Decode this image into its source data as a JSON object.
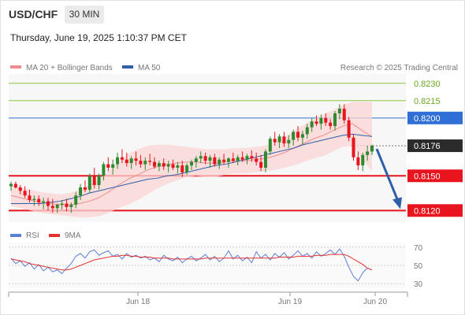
{
  "header": {
    "symbol": "USD/CHF",
    "timeframe": "30 MIN",
    "timestamp": "Thursday, June 19, 2025 1:10:37 PM CET"
  },
  "chart_data": [
    {
      "type": "candlestick",
      "legend": [
        {
          "name": "MA 20 + Bollinger Bands",
          "color": "#f08c8c"
        },
        {
          "name": "MA 50",
          "color": "#2f5fa8"
        }
      ],
      "credit": "Research © 2025 Trading Central",
      "ylim": [
        0.811,
        0.8238
      ],
      "levels": [
        {
          "label": "0.8230",
          "value": 0.823,
          "kind": "target"
        },
        {
          "label": "0.8215",
          "value": 0.8215,
          "kind": "target"
        },
        {
          "label": "0.8200",
          "value": 0.82,
          "kind": "pivot"
        },
        {
          "label": "0.8176",
          "value": 0.8176,
          "kind": "last"
        },
        {
          "label": "0.8150",
          "value": 0.815,
          "kind": "support"
        },
        {
          "label": "0.8120",
          "value": 0.812,
          "kind": "support"
        }
      ],
      "x_ticks": [
        "Jun 18",
        "Jun 19",
        "Jun 20"
      ],
      "candles": [
        [
          0.8141,
          0.8145,
          0.8137,
          0.8143
        ],
        [
          0.8143,
          0.8145,
          0.8139,
          0.814
        ],
        [
          0.814,
          0.8142,
          0.8134,
          0.8137
        ],
        [
          0.8137,
          0.8141,
          0.8131,
          0.8133
        ],
        [
          0.8133,
          0.8138,
          0.8127,
          0.8129
        ],
        [
          0.8129,
          0.8133,
          0.8124,
          0.813
        ],
        [
          0.813,
          0.8133,
          0.8124,
          0.8127
        ],
        [
          0.8127,
          0.8131,
          0.8121,
          0.8128
        ],
        [
          0.8128,
          0.8131,
          0.812,
          0.8124
        ],
        [
          0.8124,
          0.813,
          0.8118,
          0.8122
        ],
        [
          0.8122,
          0.8126,
          0.8118,
          0.8125
        ],
        [
          0.8125,
          0.8129,
          0.8121,
          0.8126
        ],
        [
          0.8126,
          0.813,
          0.8119,
          0.8123
        ],
        [
          0.8123,
          0.8127,
          0.8118,
          0.8125
        ],
        [
          0.8125,
          0.8136,
          0.8122,
          0.8133
        ],
        [
          0.8133,
          0.8143,
          0.8129,
          0.814
        ],
        [
          0.814,
          0.8146,
          0.8136,
          0.8138
        ],
        [
          0.8138,
          0.8152,
          0.8135,
          0.815
        ],
        [
          0.815,
          0.8157,
          0.8139,
          0.8142
        ],
        [
          0.8142,
          0.8152,
          0.8138,
          0.815
        ],
        [
          0.815,
          0.8162,
          0.8146,
          0.816
        ],
        [
          0.816,
          0.8166,
          0.8154,
          0.8157
        ],
        [
          0.8157,
          0.8164,
          0.8151,
          0.816
        ],
        [
          0.816,
          0.817,
          0.8156,
          0.8166
        ],
        [
          0.8166,
          0.8173,
          0.8161,
          0.8164
        ],
        [
          0.8164,
          0.817,
          0.8158,
          0.8161
        ],
        [
          0.8161,
          0.8167,
          0.8156,
          0.8165
        ],
        [
          0.8165,
          0.8171,
          0.8159,
          0.8163
        ],
        [
          0.8163,
          0.8168,
          0.8157,
          0.816
        ],
        [
          0.816,
          0.8166,
          0.8155,
          0.8163
        ],
        [
          0.8163,
          0.8169,
          0.8159,
          0.8162
        ],
        [
          0.8162,
          0.8166,
          0.8156,
          0.8158
        ],
        [
          0.8158,
          0.8163,
          0.8154,
          0.8161
        ],
        [
          0.8161,
          0.8165,
          0.8155,
          0.8158
        ],
        [
          0.8158,
          0.8163,
          0.8153,
          0.816
        ],
        [
          0.816,
          0.8164,
          0.8155,
          0.8157
        ],
        [
          0.8157,
          0.8162,
          0.8152,
          0.8159
        ],
        [
          0.8159,
          0.8163,
          0.8149,
          0.8153
        ],
        [
          0.8153,
          0.8161,
          0.8151,
          0.8159
        ],
        [
          0.8159,
          0.8164,
          0.8155,
          0.8162
        ],
        [
          0.8162,
          0.8167,
          0.8157,
          0.8165
        ],
        [
          0.8165,
          0.8171,
          0.8161,
          0.8167
        ],
        [
          0.8167,
          0.817,
          0.816,
          0.8163
        ],
        [
          0.8163,
          0.8168,
          0.8157,
          0.8166
        ],
        [
          0.8166,
          0.8169,
          0.8158,
          0.816
        ],
        [
          0.816,
          0.8166,
          0.8156,
          0.8164
        ],
        [
          0.8164,
          0.8169,
          0.816,
          0.8162
        ],
        [
          0.8162,
          0.8166,
          0.8157,
          0.8165
        ],
        [
          0.8165,
          0.817,
          0.8161,
          0.8163
        ],
        [
          0.8163,
          0.8168,
          0.8159,
          0.8166
        ],
        [
          0.8166,
          0.8171,
          0.8162,
          0.8164
        ],
        [
          0.8164,
          0.8169,
          0.816,
          0.8167
        ],
        [
          0.8167,
          0.8172,
          0.8162,
          0.8165
        ],
        [
          0.8165,
          0.817,
          0.8159,
          0.8162
        ],
        [
          0.8162,
          0.8168,
          0.8154,
          0.8157
        ],
        [
          0.8157,
          0.8173,
          0.8153,
          0.8171
        ],
        [
          0.8171,
          0.8184,
          0.8168,
          0.8182
        ],
        [
          0.8182,
          0.8188,
          0.8176,
          0.8179
        ],
        [
          0.8179,
          0.8186,
          0.8174,
          0.8184
        ],
        [
          0.8184,
          0.8188,
          0.8175,
          0.8178
        ],
        [
          0.8178,
          0.8185,
          0.8174,
          0.8181
        ],
        [
          0.8181,
          0.819,
          0.8176,
          0.8188
        ],
        [
          0.8188,
          0.8193,
          0.818,
          0.8183
        ],
        [
          0.8183,
          0.8189,
          0.8177,
          0.8186
        ],
        [
          0.8186,
          0.8195,
          0.8182,
          0.8192
        ],
        [
          0.8192,
          0.82,
          0.8188,
          0.8197
        ],
        [
          0.8197,
          0.8202,
          0.8193,
          0.8195
        ],
        [
          0.8195,
          0.8203,
          0.819,
          0.82
        ],
        [
          0.82,
          0.8204,
          0.8193,
          0.8196
        ],
        [
          0.8196,
          0.8199,
          0.819,
          0.8193
        ],
        [
          0.8193,
          0.8206,
          0.8189,
          0.8204
        ],
        [
          0.8204,
          0.8212,
          0.8199,
          0.8208
        ],
        [
          0.8208,
          0.8212,
          0.8195,
          0.8198
        ],
        [
          0.8198,
          0.8201,
          0.818,
          0.8183
        ],
        [
          0.8183,
          0.8186,
          0.8163,
          0.8166
        ],
        [
          0.8166,
          0.8171,
          0.8155,
          0.8159
        ],
        [
          0.8159,
          0.817,
          0.8154,
          0.8168
        ],
        [
          0.8168,
          0.8176,
          0.8163,
          0.8171
        ],
        [
          0.8171,
          0.8177,
          0.8168,
          0.8176
        ]
      ],
      "ma20": [
        0.8133,
        0.8131,
        0.8129,
        0.8127,
        0.8126,
        0.8125,
        0.8125,
        0.8126,
        0.8128,
        0.8131,
        0.8136,
        0.8142,
        0.8147,
        0.8151,
        0.8155,
        0.8158,
        0.816,
        0.8161,
        0.8162,
        0.8162,
        0.8161,
        0.8161,
        0.8162,
        0.8163,
        0.8163,
        0.8164,
        0.8165,
        0.8167,
        0.817,
        0.8174,
        0.8178,
        0.8182,
        0.8185,
        0.8189,
        0.8193,
        0.8195,
        0.8189,
        0.8184
      ],
      "bb_upper": [
        0.8142,
        0.814,
        0.8138,
        0.8136,
        0.8135,
        0.8134,
        0.8135,
        0.8138,
        0.8142,
        0.8147,
        0.8154,
        0.8162,
        0.8169,
        0.8173,
        0.8176,
        0.8177,
        0.8177,
        0.8176,
        0.8175,
        0.8174,
        0.8173,
        0.8173,
        0.8173,
        0.8174,
        0.8174,
        0.8175,
        0.8176,
        0.8179,
        0.8183,
        0.8189,
        0.8194,
        0.8199,
        0.8203,
        0.8207,
        0.8211,
        0.8214,
        0.8214,
        0.8214
      ],
      "bb_lower": [
        0.8124,
        0.8122,
        0.812,
        0.8118,
        0.8117,
        0.8116,
        0.8115,
        0.8114,
        0.8114,
        0.8115,
        0.8118,
        0.8122,
        0.8125,
        0.8129,
        0.8134,
        0.8139,
        0.8143,
        0.8146,
        0.8149,
        0.815,
        0.8149,
        0.8149,
        0.8151,
        0.8152,
        0.8152,
        0.8153,
        0.8154,
        0.8155,
        0.8157,
        0.8159,
        0.8162,
        0.8165,
        0.8167,
        0.8171,
        0.8175,
        0.8176,
        0.8164,
        0.8154
      ],
      "ma50": [
        0.8126,
        0.8126,
        0.8126,
        0.8126,
        0.8127,
        0.8128,
        0.813,
        0.8132,
        0.8135,
        0.8137,
        0.8139,
        0.8141,
        0.8143,
        0.8145,
        0.8147,
        0.8148,
        0.815,
        0.8151,
        0.8153,
        0.8155,
        0.8157,
        0.8159,
        0.816,
        0.8162,
        0.8164,
        0.8166,
        0.8168,
        0.817,
        0.8172,
        0.8174,
        0.8177,
        0.8179,
        0.8181,
        0.8183,
        0.8185,
        0.8186,
        0.8185,
        0.8184
      ],
      "forecast": {
        "from": 0.8176,
        "to": 0.812
      }
    },
    {
      "type": "line",
      "legend": [
        {
          "name": "RSI",
          "color": "#5b7fd6"
        },
        {
          "name": "9MA",
          "color": "#e53030"
        }
      ],
      "ylim": [
        25,
        75
      ],
      "y_ticks": [
        70,
        50,
        30
      ],
      "rsi": [
        58,
        52,
        55,
        49,
        53,
        46,
        51,
        44,
        48,
        43,
        45,
        41,
        47,
        52,
        60,
        63,
        58,
        65,
        67,
        61,
        64,
        66,
        60,
        62,
        57,
        63,
        59,
        61,
        58,
        60,
        56,
        58,
        54,
        61,
        57,
        55,
        59,
        53,
        57,
        60,
        55,
        58,
        62,
        56,
        60,
        54,
        58,
        66,
        57,
        61,
        55,
        59,
        53,
        65,
        58,
        62,
        56,
        63,
        59,
        64,
        57,
        61,
        66,
        60,
        63,
        58,
        65,
        60,
        63,
        67,
        62,
        68,
        60,
        48,
        38,
        33,
        42,
        47,
        45
      ],
      "ma9": [
        57,
        56,
        55,
        54,
        52,
        51,
        50,
        49,
        48,
        47,
        46,
        45,
        45,
        46,
        48,
        50,
        52,
        54,
        56,
        57,
        58,
        59,
        60,
        60,
        61,
        61,
        60,
        60,
        59,
        59,
        59,
        58,
        58,
        58,
        58,
        57,
        57,
        57,
        57,
        57,
        57,
        57,
        58,
        58,
        58,
        58,
        58,
        58,
        58,
        58,
        58,
        58,
        58,
        58,
        58,
        58,
        58,
        58,
        59,
        59,
        59,
        59,
        60,
        60,
        60,
        60,
        61,
        61,
        61,
        62,
        62,
        62,
        62,
        60,
        57,
        54,
        51,
        47,
        45
      ]
    }
  ]
}
